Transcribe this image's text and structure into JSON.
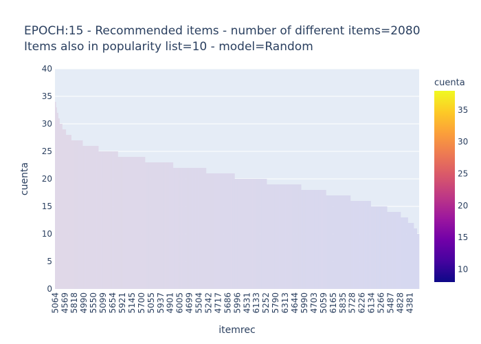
{
  "chart_data": {
    "type": "bar",
    "title_line1": "EPOCH:15 - Recommended items - number of different items=2080",
    "title_line2": "Items also in popularity list=10 - model=Random",
    "xlabel": "itemrec",
    "ylabel": "cuenta",
    "ylim": [
      0,
      40
    ],
    "yticks": [
      0,
      5,
      10,
      15,
      20,
      25,
      30,
      35,
      40
    ],
    "grid": true,
    "x_tick_labels": [
      "5064",
      "4569",
      "5818",
      "4990",
      "5550",
      "5099",
      "5654",
      "5921",
      "5145",
      "5700",
      "5055",
      "5937",
      "4901",
      "6005",
      "4699",
      "5504",
      "5242",
      "4717",
      "5686",
      "5996",
      "4531",
      "6133",
      "5252",
      "5790",
      "6313",
      "4644",
      "5990",
      "4703",
      "5059",
      "6165",
      "5835",
      "5728",
      "6226",
      "6134",
      "5266",
      "5487",
      "4828",
      "4381"
    ],
    "bar_steps": [
      {
        "value": 34,
        "count": 2
      },
      {
        "value": 33,
        "count": 2
      },
      {
        "value": 32,
        "count": 3
      },
      {
        "value": 31,
        "count": 3
      },
      {
        "value": 30,
        "count": 6
      },
      {
        "value": 29,
        "count": 8
      },
      {
        "value": 28,
        "count": 12
      },
      {
        "value": 27,
        "count": 25
      },
      {
        "value": 26,
        "count": 35
      },
      {
        "value": 25,
        "count": 43
      },
      {
        "value": 24,
        "count": 60
      },
      {
        "value": 23,
        "count": 62
      },
      {
        "value": 22,
        "count": 73
      },
      {
        "value": 21,
        "count": 63
      },
      {
        "value": 20,
        "count": 71
      },
      {
        "value": 19,
        "count": 76
      },
      {
        "value": 18,
        "count": 55
      },
      {
        "value": 17,
        "count": 54
      },
      {
        "value": 16,
        "count": 45
      },
      {
        "value": 15,
        "count": 36
      },
      {
        "value": 14,
        "count": 30
      },
      {
        "value": 13,
        "count": 16
      },
      {
        "value": 12,
        "count": 13
      },
      {
        "value": 11,
        "count": 7
      },
      {
        "value": 10,
        "count": 5
      }
    ],
    "colorbar": {
      "title": "cuenta",
      "ticks": [
        10,
        15,
        20,
        25,
        30,
        35
      ],
      "range": [
        8,
        38
      ],
      "colorscale": [
        "#0d0887",
        "#46039f",
        "#7201a8",
        "#9c179e",
        "#bd3786",
        "#d8576b",
        "#ed7953",
        "#fb9f3a",
        "#fdca26",
        "#f0f921"
      ]
    },
    "bar_color": "#dcd6ec",
    "plot_bg": "#e5ecf6"
  }
}
